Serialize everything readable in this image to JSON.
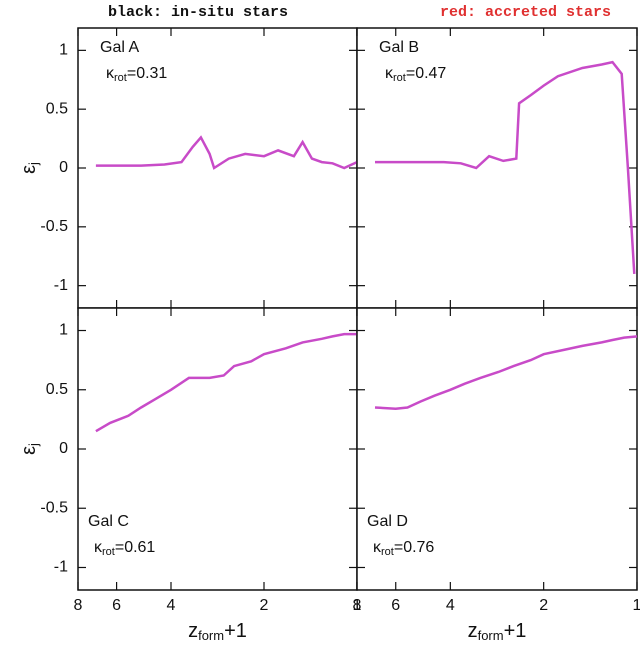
{
  "header": {
    "left": "black: in-situ stars",
    "right": "red: accreted stars"
  },
  "chart_data": [
    {
      "type": "line",
      "label": "Gal A",
      "kappa": {
        "text": "κ",
        "sub": "rot",
        "value": "=0.31"
      },
      "ylabel": {
        "text": "ε",
        "sub": "j"
      },
      "xscale": "log",
      "xlim": [
        8,
        1
      ],
      "xticks": [
        8,
        6,
        4,
        2,
        1
      ],
      "ylim": [
        -1.19,
        1.19
      ],
      "yticks": [
        -1,
        -0.5,
        0,
        0.5,
        1
      ],
      "color": "#c84bc8",
      "x": [
        7,
        6,
        5,
        4.2,
        3.7,
        3.4,
        3.2,
        3.0,
        2.9,
        2.6,
        2.3,
        2.0,
        1.8,
        1.6,
        1.5,
        1.4,
        1.3,
        1.2,
        1.1,
        1.0
      ],
      "values": [
        0.02,
        0.02,
        0.02,
        0.03,
        0.05,
        0.18,
        0.26,
        0.12,
        0.0,
        0.08,
        0.12,
        0.1,
        0.15,
        0.1,
        0.22,
        0.08,
        0.05,
        0.04,
        0.0,
        0.05
      ]
    },
    {
      "type": "line",
      "label": "Gal B",
      "kappa": {
        "text": "κ",
        "sub": "rot",
        "value": "=0.47"
      },
      "xscale": "log",
      "xlim": [
        8,
        1
      ],
      "xticks": [
        8,
        6,
        4,
        2,
        1
      ],
      "ylim": [
        -1.19,
        1.19
      ],
      "yticks": [
        -1,
        -0.5,
        0,
        0.5,
        1
      ],
      "color": "#c84bc8",
      "x": [
        7,
        6,
        5,
        4.2,
        3.7,
        3.3,
        3.0,
        2.7,
        2.45,
        2.4,
        2.2,
        2.0,
        1.8,
        1.5,
        1.3,
        1.2,
        1.12,
        1.07,
        1.02
      ],
      "values": [
        0.05,
        0.05,
        0.05,
        0.05,
        0.04,
        0.0,
        0.1,
        0.06,
        0.08,
        0.55,
        0.62,
        0.7,
        0.78,
        0.85,
        0.88,
        0.9,
        0.8,
        0.0,
        -0.9
      ]
    },
    {
      "type": "line",
      "label": "Gal C",
      "kappa": {
        "text": "κ",
        "sub": "rot",
        "value": "=0.61"
      },
      "ylabel": {
        "text": "ε",
        "sub": "j"
      },
      "xlabel": {
        "text": "z",
        "sub": "form",
        "suffix": "+1"
      },
      "xscale": "log",
      "xlim": [
        8,
        1
      ],
      "xticks": [
        8,
        6,
        4,
        2,
        1
      ],
      "ylim": [
        -1.19,
        1.19
      ],
      "yticks": [
        -1,
        -0.5,
        0,
        0.5,
        1
      ],
      "color": "#c84bc8",
      "x": [
        7,
        6.3,
        5.5,
        5,
        4.5,
        4,
        3.5,
        3,
        2.7,
        2.5,
        2.2,
        2,
        1.7,
        1.5,
        1.3,
        1.2,
        1.1,
        1
      ],
      "values": [
        0.15,
        0.22,
        0.28,
        0.35,
        0.42,
        0.5,
        0.6,
        0.6,
        0.62,
        0.7,
        0.74,
        0.8,
        0.85,
        0.9,
        0.93,
        0.95,
        0.97,
        0.97
      ]
    },
    {
      "type": "line",
      "label": "Gal D",
      "kappa": {
        "text": "κ",
        "sub": "rot",
        "value": "=0.76"
      },
      "xlabel": {
        "text": "z",
        "sub": "form",
        "suffix": "+1"
      },
      "xscale": "log",
      "xlim": [
        8,
        1
      ],
      "xticks": [
        8,
        6,
        4,
        2,
        1
      ],
      "ylim": [
        -1.19,
        1.19
      ],
      "yticks": [
        -1,
        -0.5,
        0,
        0.5,
        1
      ],
      "color": "#c84bc8",
      "x": [
        7,
        6,
        5.5,
        5,
        4.5,
        4,
        3.6,
        3.2,
        2.8,
        2.5,
        2.2,
        2,
        1.7,
        1.5,
        1.3,
        1.2,
        1.1,
        1
      ],
      "values": [
        0.35,
        0.34,
        0.35,
        0.4,
        0.45,
        0.5,
        0.55,
        0.6,
        0.65,
        0.7,
        0.75,
        0.8,
        0.84,
        0.87,
        0.9,
        0.92,
        0.94,
        0.95
      ]
    }
  ]
}
